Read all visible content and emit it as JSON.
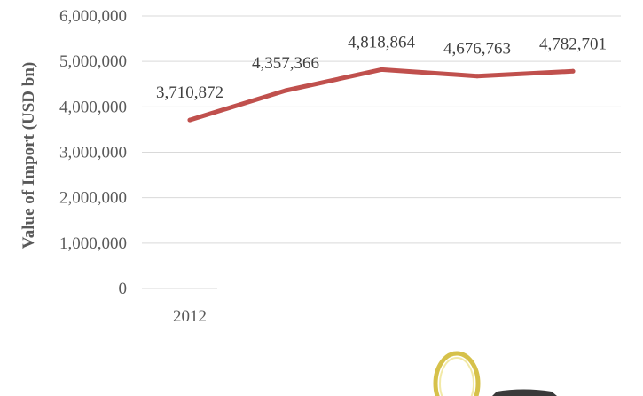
{
  "chart_data": {
    "type": "line",
    "title": "",
    "xlabel": "",
    "ylabel": "Value of Import (USD bn)",
    "categories": [
      "2012",
      "",
      "",
      "",
      ""
    ],
    "series": [
      {
        "values": [
          3710872,
          4357366,
          4818864,
          4676763,
          4782701
        ],
        "labels": [
          "3,710,872",
          "4,357,366",
          "4,818,864",
          "4,676,763",
          "4,782,701"
        ]
      }
    ],
    "ylim": [
      0,
      6000000
    ],
    "yticks": [
      "0",
      "1,000,000",
      "2,000,000",
      "3,000,000",
      "4,000,000",
      "5,000,000",
      "6,000,000"
    ],
    "grid": true,
    "legend": "none",
    "line_color": "#c0504d",
    "grid_color": "#d9d9d9"
  }
}
